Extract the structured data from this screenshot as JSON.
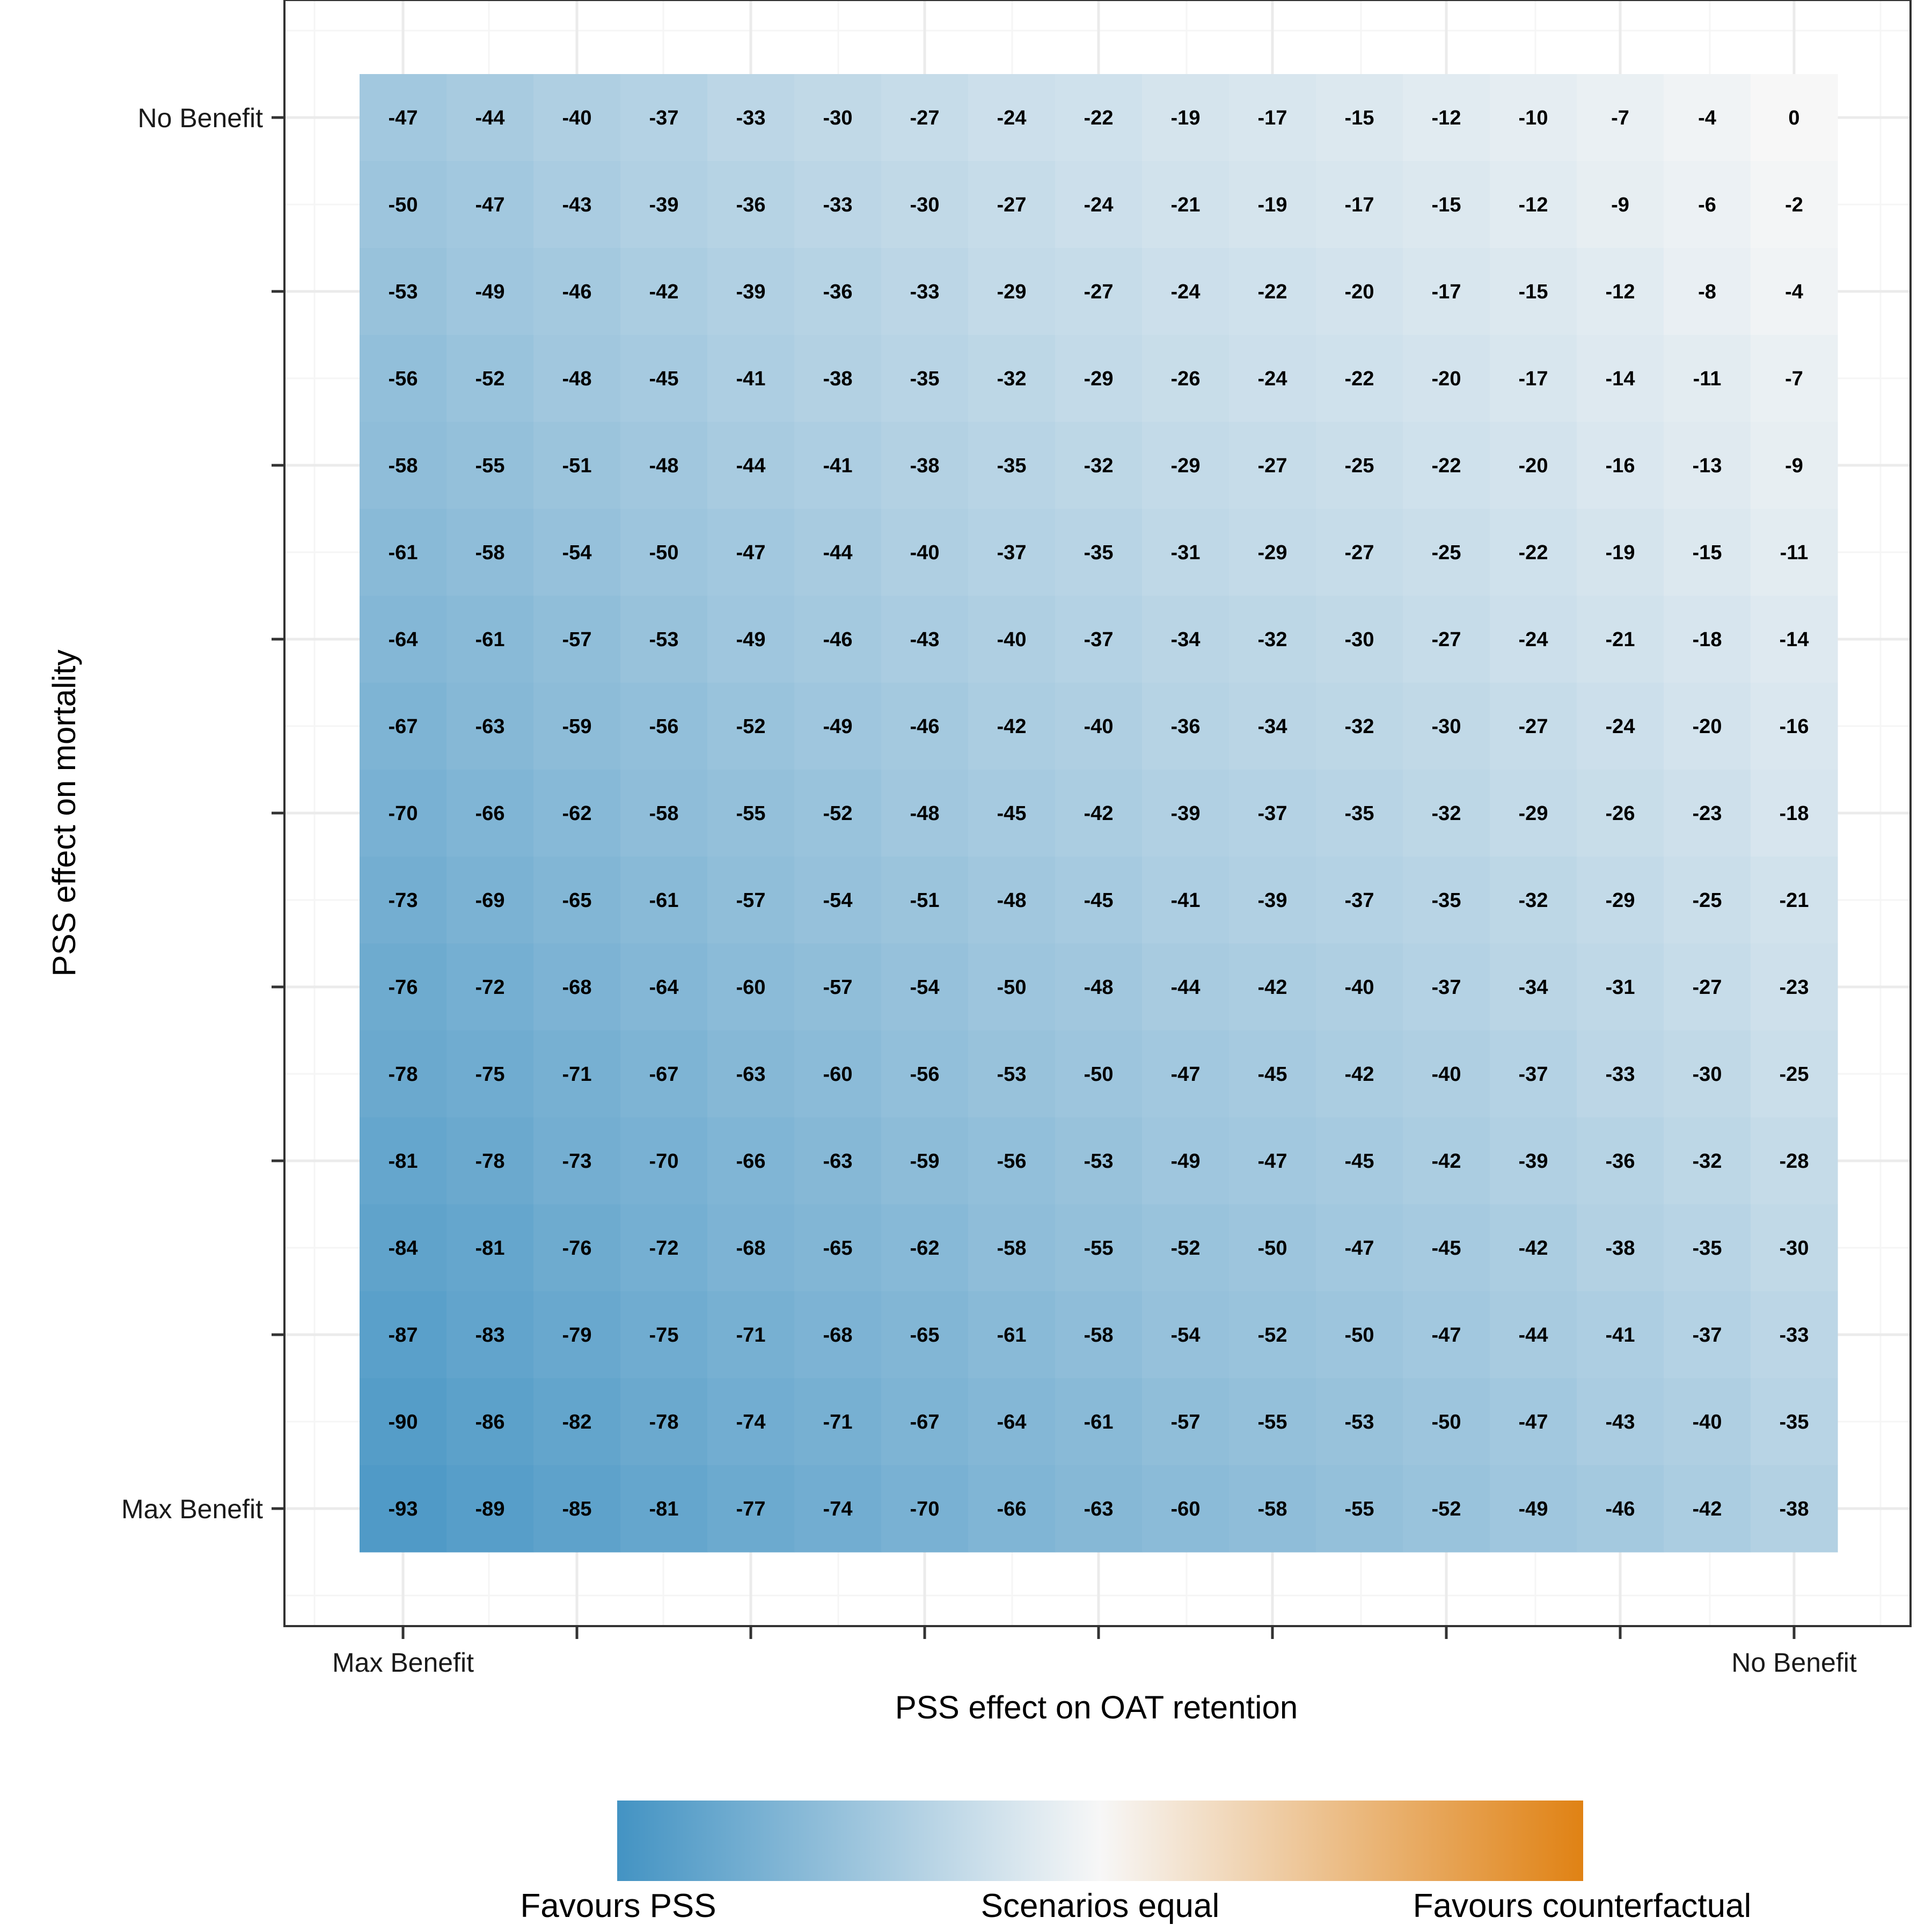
{
  "chart_data": {
    "type": "heatmap",
    "title": "",
    "xlabel": "PSS effect on OAT retention",
    "ylabel": "PSS effect on mortality",
    "x_tick_labels": {
      "left": "Max Benefit",
      "right": "No Benefit"
    },
    "y_tick_labels": {
      "top": "No Benefit",
      "bottom": "Max Benefit"
    },
    "columns": 17,
    "rows_top_to_bottom": [
      [
        -47,
        -44,
        -40,
        -37,
        -33,
        -30,
        -27,
        -24,
        -22,
        -19,
        -17,
        -15,
        -12,
        -10,
        -7,
        -4,
        0
      ],
      [
        -50,
        -47,
        -43,
        -39,
        -36,
        -33,
        -30,
        -27,
        -24,
        -21,
        -19,
        -17,
        -15,
        -12,
        -9,
        -6,
        -2
      ],
      [
        -53,
        -49,
        -46,
        -42,
        -39,
        -36,
        -33,
        -29,
        -27,
        -24,
        -22,
        -20,
        -17,
        -15,
        -12,
        -8,
        -4
      ],
      [
        -56,
        -52,
        -48,
        -45,
        -41,
        -38,
        -35,
        -32,
        -29,
        -26,
        -24,
        -22,
        -20,
        -17,
        -14,
        -11,
        -7
      ],
      [
        -58,
        -55,
        -51,
        -48,
        -44,
        -41,
        -38,
        -35,
        -32,
        -29,
        -27,
        -25,
        -22,
        -20,
        -16,
        -13,
        -9
      ],
      [
        -61,
        -58,
        -54,
        -50,
        -47,
        -44,
        -40,
        -37,
        -35,
        -31,
        -29,
        -27,
        -25,
        -22,
        -19,
        -15,
        -11
      ],
      [
        -64,
        -61,
        -57,
        -53,
        -49,
        -46,
        -43,
        -40,
        -37,
        -34,
        -32,
        -30,
        -27,
        -24,
        -21,
        -18,
        -14
      ],
      [
        -67,
        -63,
        -59,
        -56,
        -52,
        -49,
        -46,
        -42,
        -40,
        -36,
        -34,
        -32,
        -30,
        -27,
        -24,
        -20,
        -16
      ],
      [
        -70,
        -66,
        -62,
        -58,
        -55,
        -52,
        -48,
        -45,
        -42,
        -39,
        -37,
        -35,
        -32,
        -29,
        -26,
        -23,
        -18
      ],
      [
        -73,
        -69,
        -65,
        -61,
        -57,
        -54,
        -51,
        -48,
        -45,
        -41,
        -39,
        -37,
        -35,
        -32,
        -29,
        -25,
        -21
      ],
      [
        -76,
        -72,
        -68,
        -64,
        -60,
        -57,
        -54,
        -50,
        -48,
        -44,
        -42,
        -40,
        -37,
        -34,
        -31,
        -27,
        -23
      ],
      [
        -78,
        -75,
        -71,
        -67,
        -63,
        -60,
        -56,
        -53,
        -50,
        -47,
        -45,
        -42,
        -40,
        -37,
        -33,
        -30,
        -25
      ],
      [
        -81,
        -78,
        -73,
        -70,
        -66,
        -63,
        -59,
        -56,
        -53,
        -49,
        -47,
        -45,
        -42,
        -39,
        -36,
        -32,
        -28
      ],
      [
        -84,
        -81,
        -76,
        -72,
        -68,
        -65,
        -62,
        -58,
        -55,
        -52,
        -50,
        -47,
        -45,
        -42,
        -38,
        -35,
        -30
      ],
      [
        -87,
        -83,
        -79,
        -75,
        -71,
        -68,
        -65,
        -61,
        -58,
        -54,
        -52,
        -50,
        -47,
        -44,
        -41,
        -37,
        -33
      ],
      [
        -90,
        -86,
        -82,
        -78,
        -74,
        -71,
        -67,
        -64,
        -61,
        -57,
        -55,
        -53,
        -50,
        -47,
        -43,
        -40,
        -35
      ],
      [
        -93,
        -89,
        -85,
        -81,
        -77,
        -74,
        -70,
        -66,
        -63,
        -60,
        -58,
        -55,
        -52,
        -49,
        -46,
        -42,
        -38
      ]
    ],
    "color_scale": {
      "min": -100,
      "mid": 0,
      "max": 100,
      "low_color": "#4393c3",
      "mid_color": "#f7f7f7",
      "high_color": "#e08214"
    },
    "legend": {
      "placement": "bottom",
      "labels": [
        "Favours PSS",
        "Scenarios equal",
        "Favours counterfactual"
      ]
    },
    "grid": true
  },
  "colors": {
    "panel_border": "#333333",
    "grid_major": "#ebebeb",
    "grid_minor": "#f5f5f5",
    "tick": "#333333"
  }
}
